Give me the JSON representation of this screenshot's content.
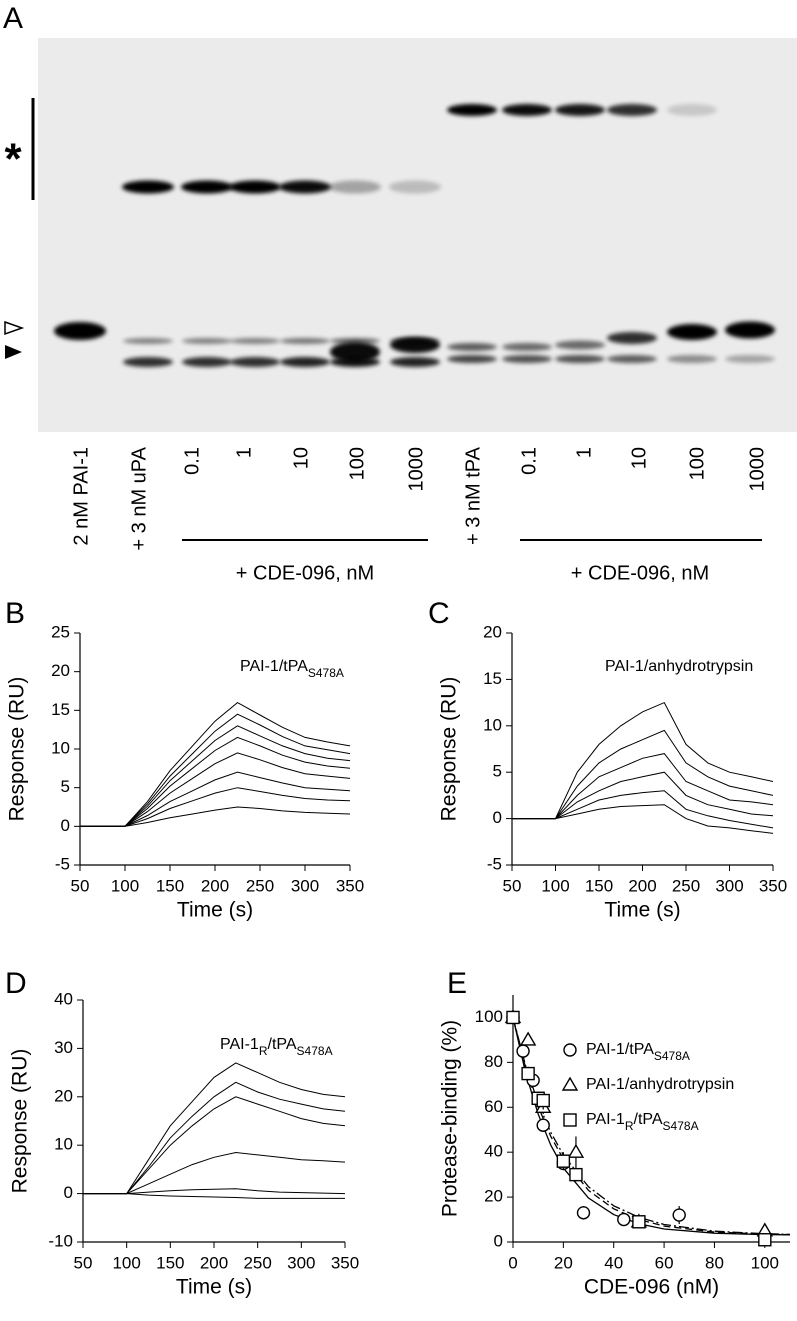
{
  "gel": {
    "panel": "A",
    "complex_marker": "*",
    "lanes": [
      "2 nM PAI-1",
      "+ 3 nM uPA",
      "0.1",
      "1",
      "10",
      "100",
      "1000",
      "+ 3 nM tPA",
      "0.1",
      "1",
      "10",
      "100",
      "1000"
    ],
    "group_labels": [
      "+ CDE-096, nM",
      "+ CDE-096, nM"
    ]
  },
  "chart_data": [
    {
      "panel": "B",
      "type": "line",
      "annotation": [
        "PAI-1/tPA",
        {
          "sub": "S478A"
        }
      ],
      "xlabel": "Time (s)",
      "ylabel": "Response (RU)",
      "color": "#000000",
      "xlim": [
        50,
        350
      ],
      "ylim": [
        -5,
        25
      ],
      "xticks": [
        50,
        100,
        150,
        200,
        250,
        300,
        350
      ],
      "yticks": [
        -5,
        0,
        5,
        10,
        15,
        20,
        25
      ],
      "x": [
        50,
        75,
        100,
        125,
        150,
        175,
        200,
        225,
        250,
        275,
        300,
        325,
        350
      ],
      "series": [
        {
          "values": [
            0,
            0,
            0,
            3.2,
            7.2,
            10.4,
            13.6,
            16,
            14.4,
            12.8,
            11.5,
            10.9,
            10.4
          ]
        },
        {
          "values": [
            0,
            0,
            0,
            2.9,
            6.5,
            9.4,
            12.3,
            14.5,
            13.1,
            11.6,
            10.4,
            9.9,
            9.4
          ]
        },
        {
          "values": [
            0,
            0,
            0,
            2.6,
            5.9,
            8.5,
            11.1,
            13,
            11.7,
            10.4,
            9.4,
            8.8,
            8.5
          ]
        },
        {
          "values": [
            0,
            0,
            0,
            2.3,
            5.2,
            7.5,
            9.8,
            11.5,
            10.4,
            9.2,
            8.3,
            7.8,
            7.5
          ]
        },
        {
          "values": [
            0,
            0,
            0,
            1.9,
            4.3,
            6.2,
            8.1,
            9.5,
            8.6,
            7.6,
            6.8,
            6.5,
            6.2
          ]
        },
        {
          "values": [
            0,
            0,
            0,
            1.4,
            3.2,
            4.6,
            6,
            7,
            6.3,
            5.6,
            5,
            4.8,
            4.6
          ]
        },
        {
          "values": [
            0,
            0,
            0,
            1,
            2.3,
            3.3,
            4.3,
            5,
            4.5,
            4,
            3.6,
            3.4,
            3.3
          ]
        },
        {
          "values": [
            0,
            0,
            0,
            0.5,
            1.1,
            1.6,
            2.1,
            2.5,
            2.3,
            2,
            1.8,
            1.7,
            1.6
          ]
        }
      ]
    },
    {
      "panel": "C",
      "type": "line",
      "annotation": [
        "PAI-1/anhydrotrypsin"
      ],
      "xlabel": "Time (s)",
      "ylabel": "Response (RU)",
      "color": "#000000",
      "xlim": [
        50,
        350
      ],
      "ylim": [
        -5,
        20
      ],
      "xticks": [
        50,
        100,
        150,
        200,
        250,
        300,
        350
      ],
      "yticks": [
        -5,
        0,
        5,
        10,
        15,
        20
      ],
      "x": [
        50,
        75,
        100,
        125,
        150,
        175,
        200,
        225,
        250,
        275,
        300,
        325,
        350
      ],
      "series": [
        {
          "values": [
            0,
            0,
            0,
            5,
            8,
            10,
            11.5,
            12.5,
            8,
            6,
            5,
            4.5,
            4
          ]
        },
        {
          "values": [
            0,
            0,
            0,
            3.5,
            6,
            7.5,
            8.5,
            9.5,
            6,
            4.5,
            3.5,
            3,
            2.5
          ]
        },
        {
          "values": [
            0,
            0,
            0,
            2.5,
            4.5,
            5.5,
            6.5,
            7,
            4,
            3,
            2,
            1.8,
            1.5
          ]
        },
        {
          "values": [
            0,
            0,
            0,
            1.8,
            3,
            4,
            4.5,
            5,
            2.5,
            1.5,
            1,
            0.5,
            0.3
          ]
        },
        {
          "values": [
            0,
            0,
            0,
            1,
            2,
            2.5,
            2.8,
            3,
            1,
            0.3,
            -0.2,
            -0.6,
            -1
          ]
        },
        {
          "values": [
            0,
            0,
            0,
            0.5,
            1,
            1.3,
            1.4,
            1.5,
            0,
            -0.8,
            -1,
            -1.3,
            -1.6
          ]
        }
      ]
    },
    {
      "panel": "D",
      "type": "line",
      "annotation": [
        "PAI-1",
        {
          "sub": "R"
        },
        "/tPA",
        {
          "sub": "S478A"
        }
      ],
      "xlabel": "Time (s)",
      "ylabel": "Response (RU)",
      "color": "#000000",
      "xlim": [
        50,
        350
      ],
      "ylim": [
        -10,
        40
      ],
      "xticks": [
        50,
        100,
        150,
        200,
        250,
        300,
        350
      ],
      "yticks": [
        -10,
        0,
        10,
        20,
        30,
        40
      ],
      "x": [
        50,
        75,
        100,
        125,
        150,
        175,
        200,
        225,
        250,
        275,
        300,
        325,
        350
      ],
      "series": [
        {
          "values": [
            0,
            0,
            0,
            7,
            14,
            19,
            24,
            27,
            25,
            23,
            21.5,
            20.5,
            20
          ]
        },
        {
          "values": [
            0,
            0,
            0,
            5.5,
            11.5,
            16,
            20,
            23,
            21,
            19.5,
            18.5,
            17.5,
            17
          ]
        },
        {
          "values": [
            0,
            0,
            0,
            5,
            10,
            14,
            17.5,
            20,
            18.5,
            17,
            15.5,
            14.5,
            14
          ]
        },
        {
          "values": [
            0,
            0,
            0,
            2,
            4,
            6,
            7.5,
            8.5,
            8,
            7.5,
            7,
            6.8,
            6.5
          ]
        },
        {
          "values": [
            0,
            0,
            0,
            0.3,
            0.6,
            0.8,
            0.9,
            1,
            0.6,
            0.3,
            0.2,
            0.1,
            0
          ]
        },
        {
          "values": [
            0,
            0,
            0,
            -0.3,
            -0.5,
            -0.6,
            -0.7,
            -0.8,
            -1,
            -1,
            -1,
            -1,
            -1
          ]
        }
      ]
    },
    {
      "panel": "E",
      "type": "scatter",
      "xlabel": "CDE-096 (nM)",
      "ylabel": "Protease-binding (%)",
      "color": "#000000",
      "xlim": [
        0,
        110
      ],
      "ylim": [
        0,
        110
      ],
      "xticks": [
        0,
        20,
        40,
        60,
        80,
        100
      ],
      "yticks": [
        0,
        20,
        40,
        60,
        80,
        100
      ],
      "series": [
        {
          "name": [
            "PAI-1/tPA",
            {
              "sub": "S478A"
            }
          ],
          "marker": "circle",
          "x": [
            0,
            4,
            8,
            12,
            20,
            28,
            44,
            66
          ],
          "values": [
            100,
            85,
            72,
            52,
            35,
            13,
            10,
            12
          ],
          "errors": [
            2,
            3,
            3,
            3,
            3,
            3,
            2,
            4
          ]
        },
        {
          "name": [
            "PAI-1/anhydrotrypsin"
          ],
          "marker": "triangle",
          "x": [
            0,
            6,
            12,
            25,
            50,
            100
          ],
          "values": [
            100,
            90,
            60,
            40,
            9,
            5
          ],
          "errors": [
            2,
            2,
            3,
            7,
            2,
            2
          ]
        },
        {
          "name": [
            "PAI-1",
            {
              "sub": "R"
            },
            "/tPA",
            {
              "sub": "S478A"
            }
          ],
          "marker": "square",
          "x": [
            0,
            6,
            10,
            12,
            20,
            25,
            50,
            100
          ],
          "values": [
            100,
            75,
            64,
            63,
            36,
            30,
            9,
            1
          ],
          "errors": [
            2,
            3,
            3,
            4,
            4,
            3,
            2,
            3
          ]
        }
      ],
      "fit_lines": [
        {
          "dash": "none",
          "x": [
            0,
            5,
            10,
            15,
            20,
            30,
            40,
            50,
            60,
            80,
            100,
            110
          ],
          "values": [
            100,
            75.3,
            56.9,
            43.1,
            32.9,
            19.6,
            12.2,
            8.1,
            5.8,
            3.9,
            3.3,
            3.2
          ]
        },
        {
          "dash": "7 4",
          "x": [
            0,
            5,
            10,
            15,
            20,
            30,
            40,
            50,
            60,
            80,
            100,
            110
          ],
          "values": [
            100,
            77.6,
            60.3,
            47,
            36.9,
            23,
            14.8,
            10,
            7.1,
            4.4,
            3.5,
            3.3
          ]
        },
        {
          "dash": "10 3 2 3",
          "x": [
            0,
            5,
            10,
            15,
            20,
            30,
            40,
            50,
            60,
            80,
            100,
            110
          ],
          "values": [
            100,
            78.5,
            61.8,
            48.8,
            38.7,
            24.6,
            16.1,
            11,
            7.8,
            4.8,
            3.7,
            3.4
          ]
        }
      ]
    }
  ]
}
